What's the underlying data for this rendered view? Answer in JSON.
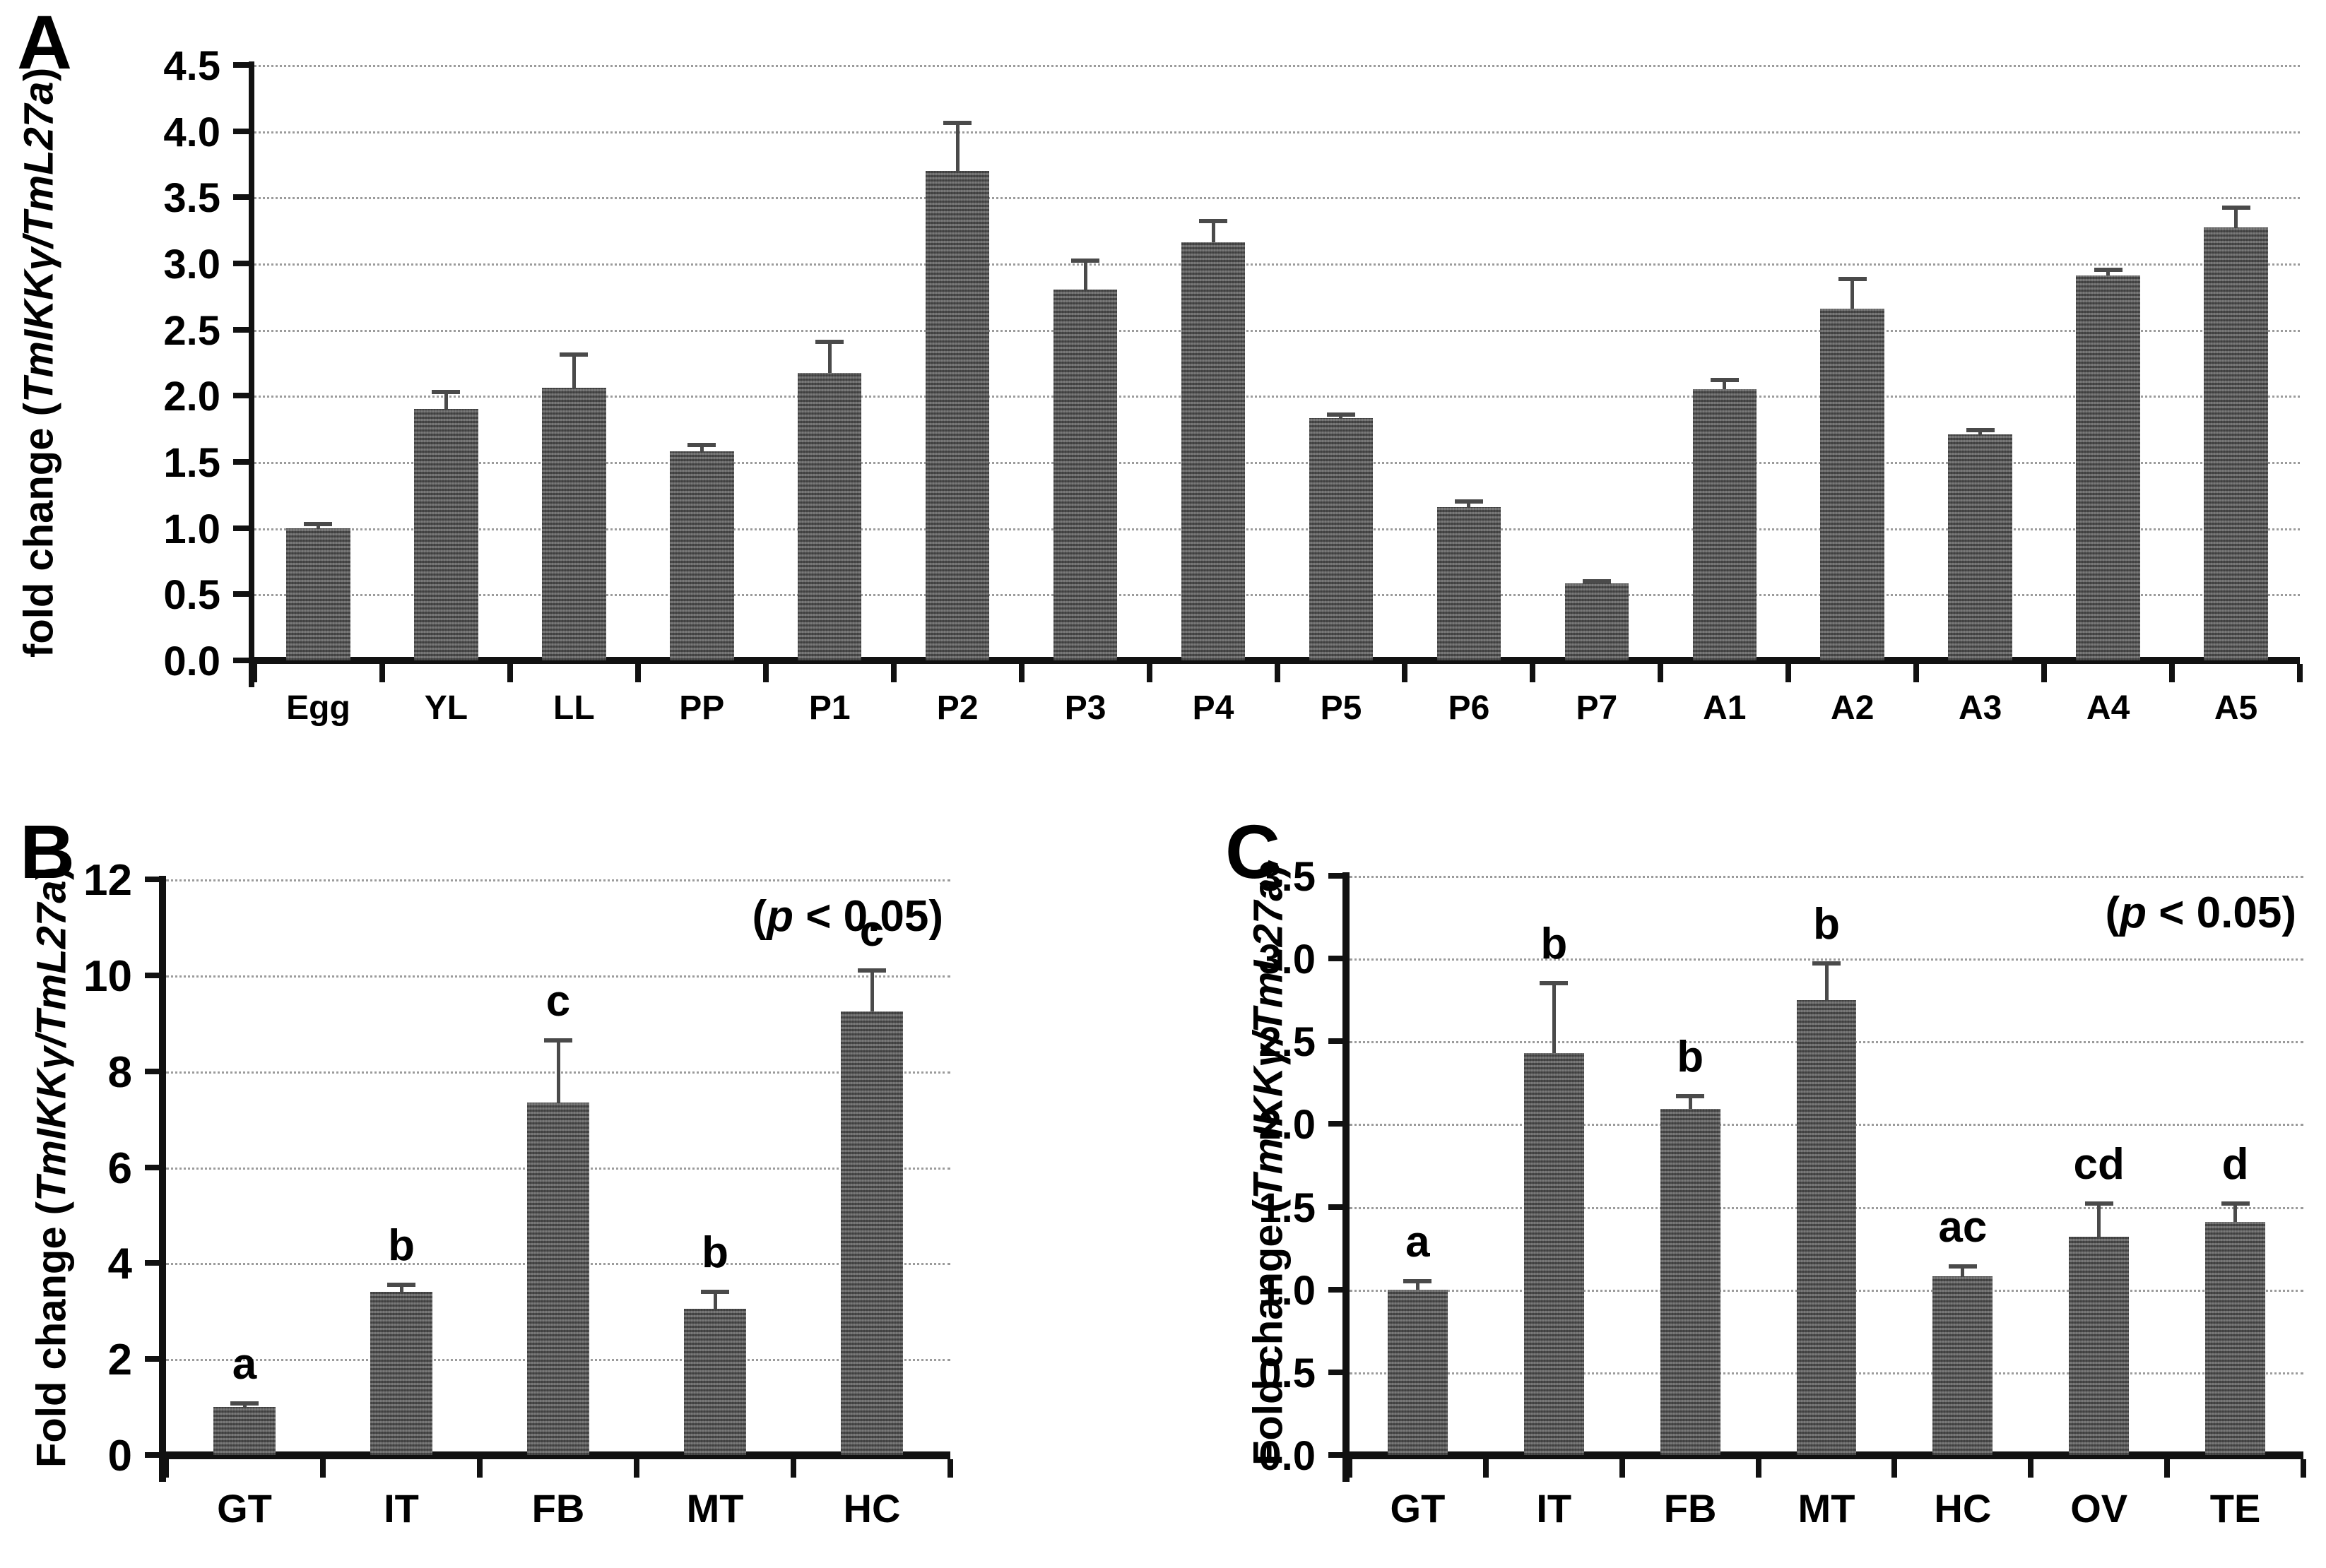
{
  "figure": {
    "background": "#ffffff",
    "bar_color": "#676767",
    "grid_color": "#9b9b9b",
    "axis_color": "#111111",
    "error_bar_color": "#4a4a4a"
  },
  "chart_data": [
    {
      "id": "A",
      "type": "bar",
      "panel_label": "A",
      "ylabel": "fold change (TmIKKγ/TmL27a)",
      "ylabel_prefix": "fold change (",
      "ylabel_gene": "TmIKKγ/TmL27a",
      "ylabel_suffix": ")",
      "categories": [
        "Egg",
        "YL",
        "LL",
        "PP",
        "P1",
        "P2",
        "P3",
        "P4",
        "P5",
        "P6",
        "P7",
        "A1",
        "A2",
        "A3",
        "A4",
        "A5"
      ],
      "values": [
        1.0,
        1.9,
        2.06,
        1.58,
        2.17,
        3.7,
        2.8,
        3.16,
        1.83,
        1.16,
        0.58,
        2.05,
        2.66,
        1.71,
        2.91,
        3.27
      ],
      "errors": [
        0.03,
        0.13,
        0.25,
        0.05,
        0.24,
        0.36,
        0.22,
        0.16,
        0.03,
        0.04,
        0.02,
        0.07,
        0.22,
        0.03,
        0.04,
        0.15
      ],
      "letters": null,
      "annotation": null,
      "ylim": [
        0,
        4.5
      ],
      "ytick_step": 0.5,
      "yticks": [
        "0.0",
        "0.5",
        "1.0",
        "1.5",
        "2.0",
        "2.5",
        "3.0",
        "3.5",
        "4.0",
        "4.5"
      ],
      "grid": true,
      "legend": null
    },
    {
      "id": "B",
      "type": "bar",
      "panel_label": "B",
      "ylabel": "Fold change (TmIKKγ/TmL27a)",
      "ylabel_prefix": "Fold change (",
      "ylabel_gene": "TmIKKγ/TmL27a",
      "ylabel_suffix": ")",
      "categories": [
        "GT",
        "IT",
        "FB",
        "MT",
        "HC"
      ],
      "values": [
        1.0,
        3.4,
        7.35,
        3.05,
        9.25
      ],
      "errors": [
        0.07,
        0.15,
        1.3,
        0.35,
        0.85
      ],
      "letters": [
        "a",
        "b",
        "c",
        "b",
        "c"
      ],
      "annotation": {
        "open": "(",
        "p": "p",
        "rest": " < 0.05)"
      },
      "ylim": [
        0,
        12
      ],
      "ytick_step": 2,
      "yticks": [
        "0",
        "2",
        "4",
        "6",
        "8",
        "10",
        "12"
      ],
      "grid": true,
      "legend": null
    },
    {
      "id": "C",
      "type": "bar",
      "panel_label": "C",
      "ylabel": "Fold change (TmIKKγ/TmL27a)",
      "ylabel_prefix": "Fold change (",
      "ylabel_gene": "TmIKKγ/TmL27a",
      "ylabel_suffix": ")",
      "categories": [
        "GT",
        "IT",
        "FB",
        "MT",
        "HC",
        "OV",
        "TE"
      ],
      "values": [
        1.0,
        2.43,
        2.09,
        2.75,
        1.08,
        1.32,
        1.41
      ],
      "errors": [
        0.05,
        0.42,
        0.08,
        0.22,
        0.06,
        0.2,
        0.11
      ],
      "letters": [
        "a",
        "b",
        "b",
        "b",
        "ac",
        "cd",
        "d"
      ],
      "annotation": {
        "open": "(",
        "p": "p",
        "rest": " < 0.05)"
      },
      "ylim": [
        0,
        3.5
      ],
      "ytick_step": 0.5,
      "yticks": [
        "0.0",
        "0.5",
        "1.0",
        "1.5",
        "2.0",
        "2.5",
        "3.0",
        "3.5"
      ],
      "grid": true,
      "legend": null
    }
  ]
}
